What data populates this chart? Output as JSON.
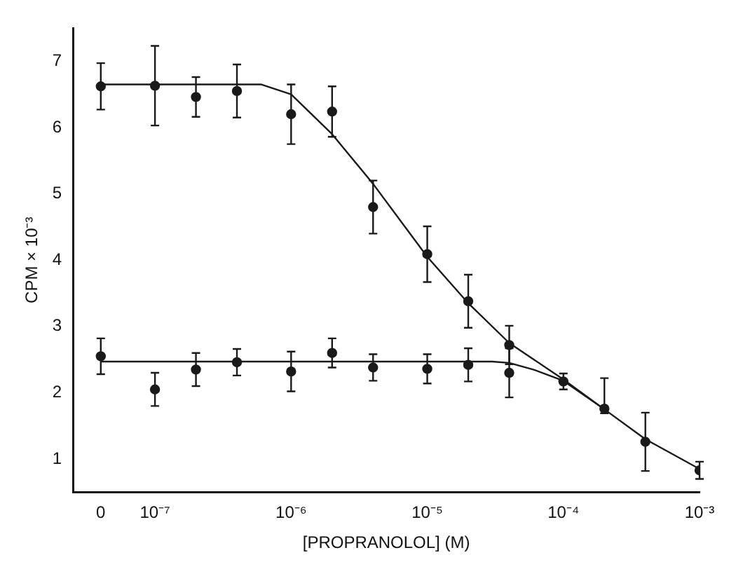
{
  "chart_data": {
    "type": "scatter",
    "xlabel": "[PROPRANOLOL] (M)",
    "ylabel": "CPM × 10⁻³",
    "log": "x",
    "xlim": [
      2.5e-08,
      0.001
    ],
    "ylim": [
      0.5,
      7.5
    ],
    "xticks": [
      {
        "value": 4e-08,
        "label": "0"
      },
      {
        "value": 1e-07,
        "label": "10⁻⁷"
      },
      {
        "value": 1e-06,
        "label": "10⁻⁶"
      },
      {
        "value": 1e-05,
        "label": "10⁻⁵"
      },
      {
        "value": 0.0001,
        "label": "10⁻⁴"
      },
      {
        "value": 0.001,
        "label": "10⁻³"
      }
    ],
    "yticks": [
      1,
      2,
      3,
      4,
      5,
      6,
      7
    ],
    "marker": "circle",
    "series": [
      {
        "color": "#1a1a1a",
        "x": [
          4e-08,
          1e-07,
          2e-07,
          4e-07,
          1e-06,
          2e-06,
          4e-06,
          1e-05,
          2e-05,
          4e-05,
          0.0001,
          0.0002,
          0.0004,
          0.001
        ],
        "values": [
          6.62,
          6.63,
          6.46,
          6.55,
          6.2,
          6.24,
          4.8,
          4.09,
          3.38,
          2.72,
          2.17,
          1.76,
          1.26,
          0.83
        ],
        "errors": [
          0.35,
          0.6,
          0.3,
          0.4,
          0.45,
          0.38,
          0.4,
          0.42,
          0.4,
          0.29,
          0.12,
          [
            1.69,
            2.22
          ],
          0.44,
          0.13
        ]
      },
      {
        "color": "#1a1a1a",
        "x": [
          4e-08,
          1e-07,
          2e-07,
          4e-07,
          1e-06,
          2e-06,
          4e-06,
          1e-05,
          2e-05,
          4e-05
        ],
        "values": [
          2.55,
          2.05,
          2.35,
          2.46,
          2.32,
          2.6,
          2.38,
          2.36,
          2.42,
          2.3
        ],
        "errors": [
          0.27,
          0.25,
          0.25,
          0.2,
          0.3,
          0.22,
          0.2,
          0.22,
          0.25,
          0.37
        ]
      },
      {
        "type": "line",
        "marker": "none",
        "color": "#1a1a1a",
        "x": [
          4e-08,
          1e-07,
          2e-07,
          4e-07,
          6e-07,
          1e-06,
          2e-06,
          4e-06,
          1e-05,
          2e-05,
          4e-05,
          0.0001,
          0.0002,
          0.0004,
          0.001
        ],
        "values": [
          6.65,
          6.65,
          6.65,
          6.65,
          6.65,
          6.5,
          5.9,
          5.15,
          4.05,
          3.35,
          2.75,
          2.2,
          1.75,
          1.3,
          0.85
        ]
      },
      {
        "type": "line",
        "marker": "none",
        "color": "#1a1a1a",
        "x": [
          4e-08,
          1e-07,
          1e-06,
          1e-05,
          3e-05,
          4e-05,
          6e-05,
          0.0001,
          0.0002
        ],
        "values": [
          2.47,
          2.47,
          2.47,
          2.47,
          2.47,
          2.45,
          2.35,
          2.18,
          1.75
        ]
      }
    ]
  }
}
